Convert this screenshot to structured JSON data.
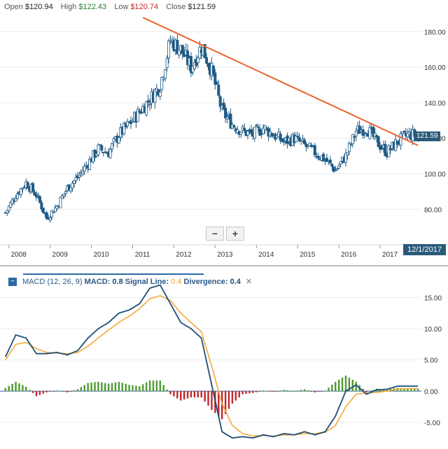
{
  "ohlc": {
    "open_label": "Open",
    "open": "$120.94",
    "high_label": "High",
    "high": "$122.43",
    "low_label": "Low",
    "low": "$120.74",
    "close_label": "Close",
    "close": "$121.59"
  },
  "zoom": {
    "minus": "−",
    "plus": "+"
  },
  "date_flag": "12/1/2017",
  "price_flag": "121.59",
  "macd_header": {
    "toggle": "−",
    "name": "MACD (12, 26, 9)",
    "macd_label": "MACD:",
    "macd_value": "0.8",
    "signal_label": "Signal Line:",
    "signal_value": "0.4",
    "div_label": "Divergence:",
    "div_value": "0.4",
    "close": "✕"
  },
  "colors": {
    "up_candle": "#ffffff",
    "down_candle": "#1f5a85",
    "trendline": "#e8642c",
    "macd_line": "#1f4e79",
    "signal_line": "#f5a83a",
    "hist_pos": "#4e9a32",
    "hist_neg": "#c0282d"
  },
  "chart_data": [
    {
      "type": "candlestick",
      "title": "",
      "x_ticks": [
        "2008",
        "2009",
        "2010",
        "2011",
        "2012",
        "2013",
        "2014",
        "2015",
        "2016",
        "2017"
      ],
      "y_ticks": [
        "80.00",
        "100.00",
        "120.00",
        "140.00",
        "160.00",
        "180.00"
      ],
      "ylim": [
        62,
        190
      ],
      "grid": true,
      "close_path": [
        [
          "2007-12",
          78
        ],
        [
          "2008-03",
          88
        ],
        [
          "2008-06",
          95
        ],
        [
          "2008-09",
          88
        ],
        [
          "2008-12",
          75
        ],
        [
          "2009-03",
          82
        ],
        [
          "2009-06",
          92
        ],
        [
          "2009-09",
          98
        ],
        [
          "2009-12",
          106
        ],
        [
          "2010-03",
          114
        ],
        [
          "2010-06",
          112
        ],
        [
          "2010-09",
          122
        ],
        [
          "2010-12",
          128
        ],
        [
          "2011-03",
          135
        ],
        [
          "2011-06",
          142
        ],
        [
          "2011-09",
          150
        ],
        [
          "2011-12",
          175
        ],
        [
          "2012-03",
          170
        ],
        [
          "2012-06",
          160
        ],
        [
          "2012-09",
          172
        ],
        [
          "2012-12",
          158
        ],
        [
          "2013-03",
          135
        ],
        [
          "2013-06",
          128
        ],
        [
          "2013-09",
          124
        ],
        [
          "2013-12",
          122
        ],
        [
          "2014-03",
          126
        ],
        [
          "2014-06",
          122
        ],
        [
          "2014-09",
          118
        ],
        [
          "2014-12",
          120
        ],
        [
          "2015-03",
          116
        ],
        [
          "2015-06",
          112
        ],
        [
          "2015-09",
          108
        ],
        [
          "2015-12",
          102
        ],
        [
          "2016-03",
          110
        ],
        [
          "2016-06",
          124
        ],
        [
          "2016-09",
          126
        ],
        [
          "2016-12",
          118
        ],
        [
          "2017-03",
          112
        ],
        [
          "2017-06",
          118
        ],
        [
          "2017-09",
          122
        ],
        [
          "2017-12",
          121.59
        ]
      ],
      "trendline": [
        [
          "2011-04",
          188
        ],
        [
          "2017-12",
          116
        ]
      ]
    },
    {
      "type": "macd",
      "name": "MACD (12, 26, 9)",
      "y_ticks": [
        "15.00",
        "10.00",
        "5.00",
        "0.00",
        "-5.00"
      ],
      "ylim": [
        -7.7,
        16.5
      ],
      "macd": [
        [
          "2007-12",
          5.5
        ],
        [
          "2008-03",
          9
        ],
        [
          "2008-06",
          8.5
        ],
        [
          "2008-09",
          6
        ],
        [
          "2008-12",
          6
        ],
        [
          "2009-03",
          6.2
        ],
        [
          "2009-06",
          5.8
        ],
        [
          "2009-09",
          6.5
        ],
        [
          "2009-12",
          8.5
        ],
        [
          "2010-03",
          10
        ],
        [
          "2010-06",
          11
        ],
        [
          "2010-09",
          12.5
        ],
        [
          "2010-12",
          13
        ],
        [
          "2011-03",
          14
        ],
        [
          "2011-06",
          16.5
        ],
        [
          "2011-09",
          17
        ],
        [
          "2011-12",
          14
        ],
        [
          "2012-03",
          11
        ],
        [
          "2012-06",
          10
        ],
        [
          "2012-09",
          8.5
        ],
        [
          "2012-12",
          1
        ],
        [
          "2013-03",
          -6.5
        ],
        [
          "2013-06",
          -7.5
        ],
        [
          "2013-09",
          -7.3
        ],
        [
          "2013-12",
          -7.5
        ],
        [
          "2014-03",
          -7
        ],
        [
          "2014-06",
          -7.3
        ],
        [
          "2014-09",
          -6.8
        ],
        [
          "2014-12",
          -7
        ],
        [
          "2015-03",
          -6.5
        ],
        [
          "2015-06",
          -7
        ],
        [
          "2015-09",
          -6.5
        ],
        [
          "2015-12",
          -4
        ],
        [
          "2016-03",
          0
        ],
        [
          "2016-06",
          1
        ],
        [
          "2016-09",
          -0.5
        ],
        [
          "2016-12",
          0.2
        ],
        [
          "2017-03",
          0.3
        ],
        [
          "2017-06",
          0.8
        ],
        [
          "2017-09",
          0.8
        ],
        [
          "2017-12",
          0.8
        ]
      ],
      "signal": [
        [
          "2007-12",
          5
        ],
        [
          "2008-03",
          7.5
        ],
        [
          "2008-06",
          7.8
        ],
        [
          "2008-09",
          6.8
        ],
        [
          "2008-12",
          6.2
        ],
        [
          "2009-03",
          6.1
        ],
        [
          "2009-06",
          6
        ],
        [
          "2009-09",
          6.2
        ],
        [
          "2009-12",
          7.2
        ],
        [
          "2010-03",
          8.5
        ],
        [
          "2010-06",
          9.8
        ],
        [
          "2010-09",
          11
        ],
        [
          "2010-12",
          12
        ],
        [
          "2011-03",
          13.2
        ],
        [
          "2011-06",
          14.8
        ],
        [
          "2011-09",
          15.3
        ],
        [
          "2011-12",
          14.5
        ],
        [
          "2012-03",
          12.5
        ],
        [
          "2012-06",
          11
        ],
        [
          "2012-09",
          9.5
        ],
        [
          "2012-12",
          4
        ],
        [
          "2013-03",
          -2
        ],
        [
          "2013-06",
          -5.5
        ],
        [
          "2013-09",
          -6.8
        ],
        [
          "2013-12",
          -7.2
        ],
        [
          "2014-03",
          -7.1
        ],
        [
          "2014-06",
          -7.2
        ],
        [
          "2014-09",
          -7
        ],
        [
          "2014-12",
          -7
        ],
        [
          "2015-03",
          -6.8
        ],
        [
          "2015-06",
          -6.8
        ],
        [
          "2015-09",
          -6.6
        ],
        [
          "2015-12",
          -5.5
        ],
        [
          "2016-03",
          -2.5
        ],
        [
          "2016-06",
          -0.5
        ],
        [
          "2016-09",
          -0.3
        ],
        [
          "2016-12",
          -0.2
        ],
        [
          "2017-03",
          0
        ],
        [
          "2017-06",
          0.3
        ],
        [
          "2017-09",
          0.4
        ],
        [
          "2017-12",
          0.4
        ]
      ]
    }
  ]
}
